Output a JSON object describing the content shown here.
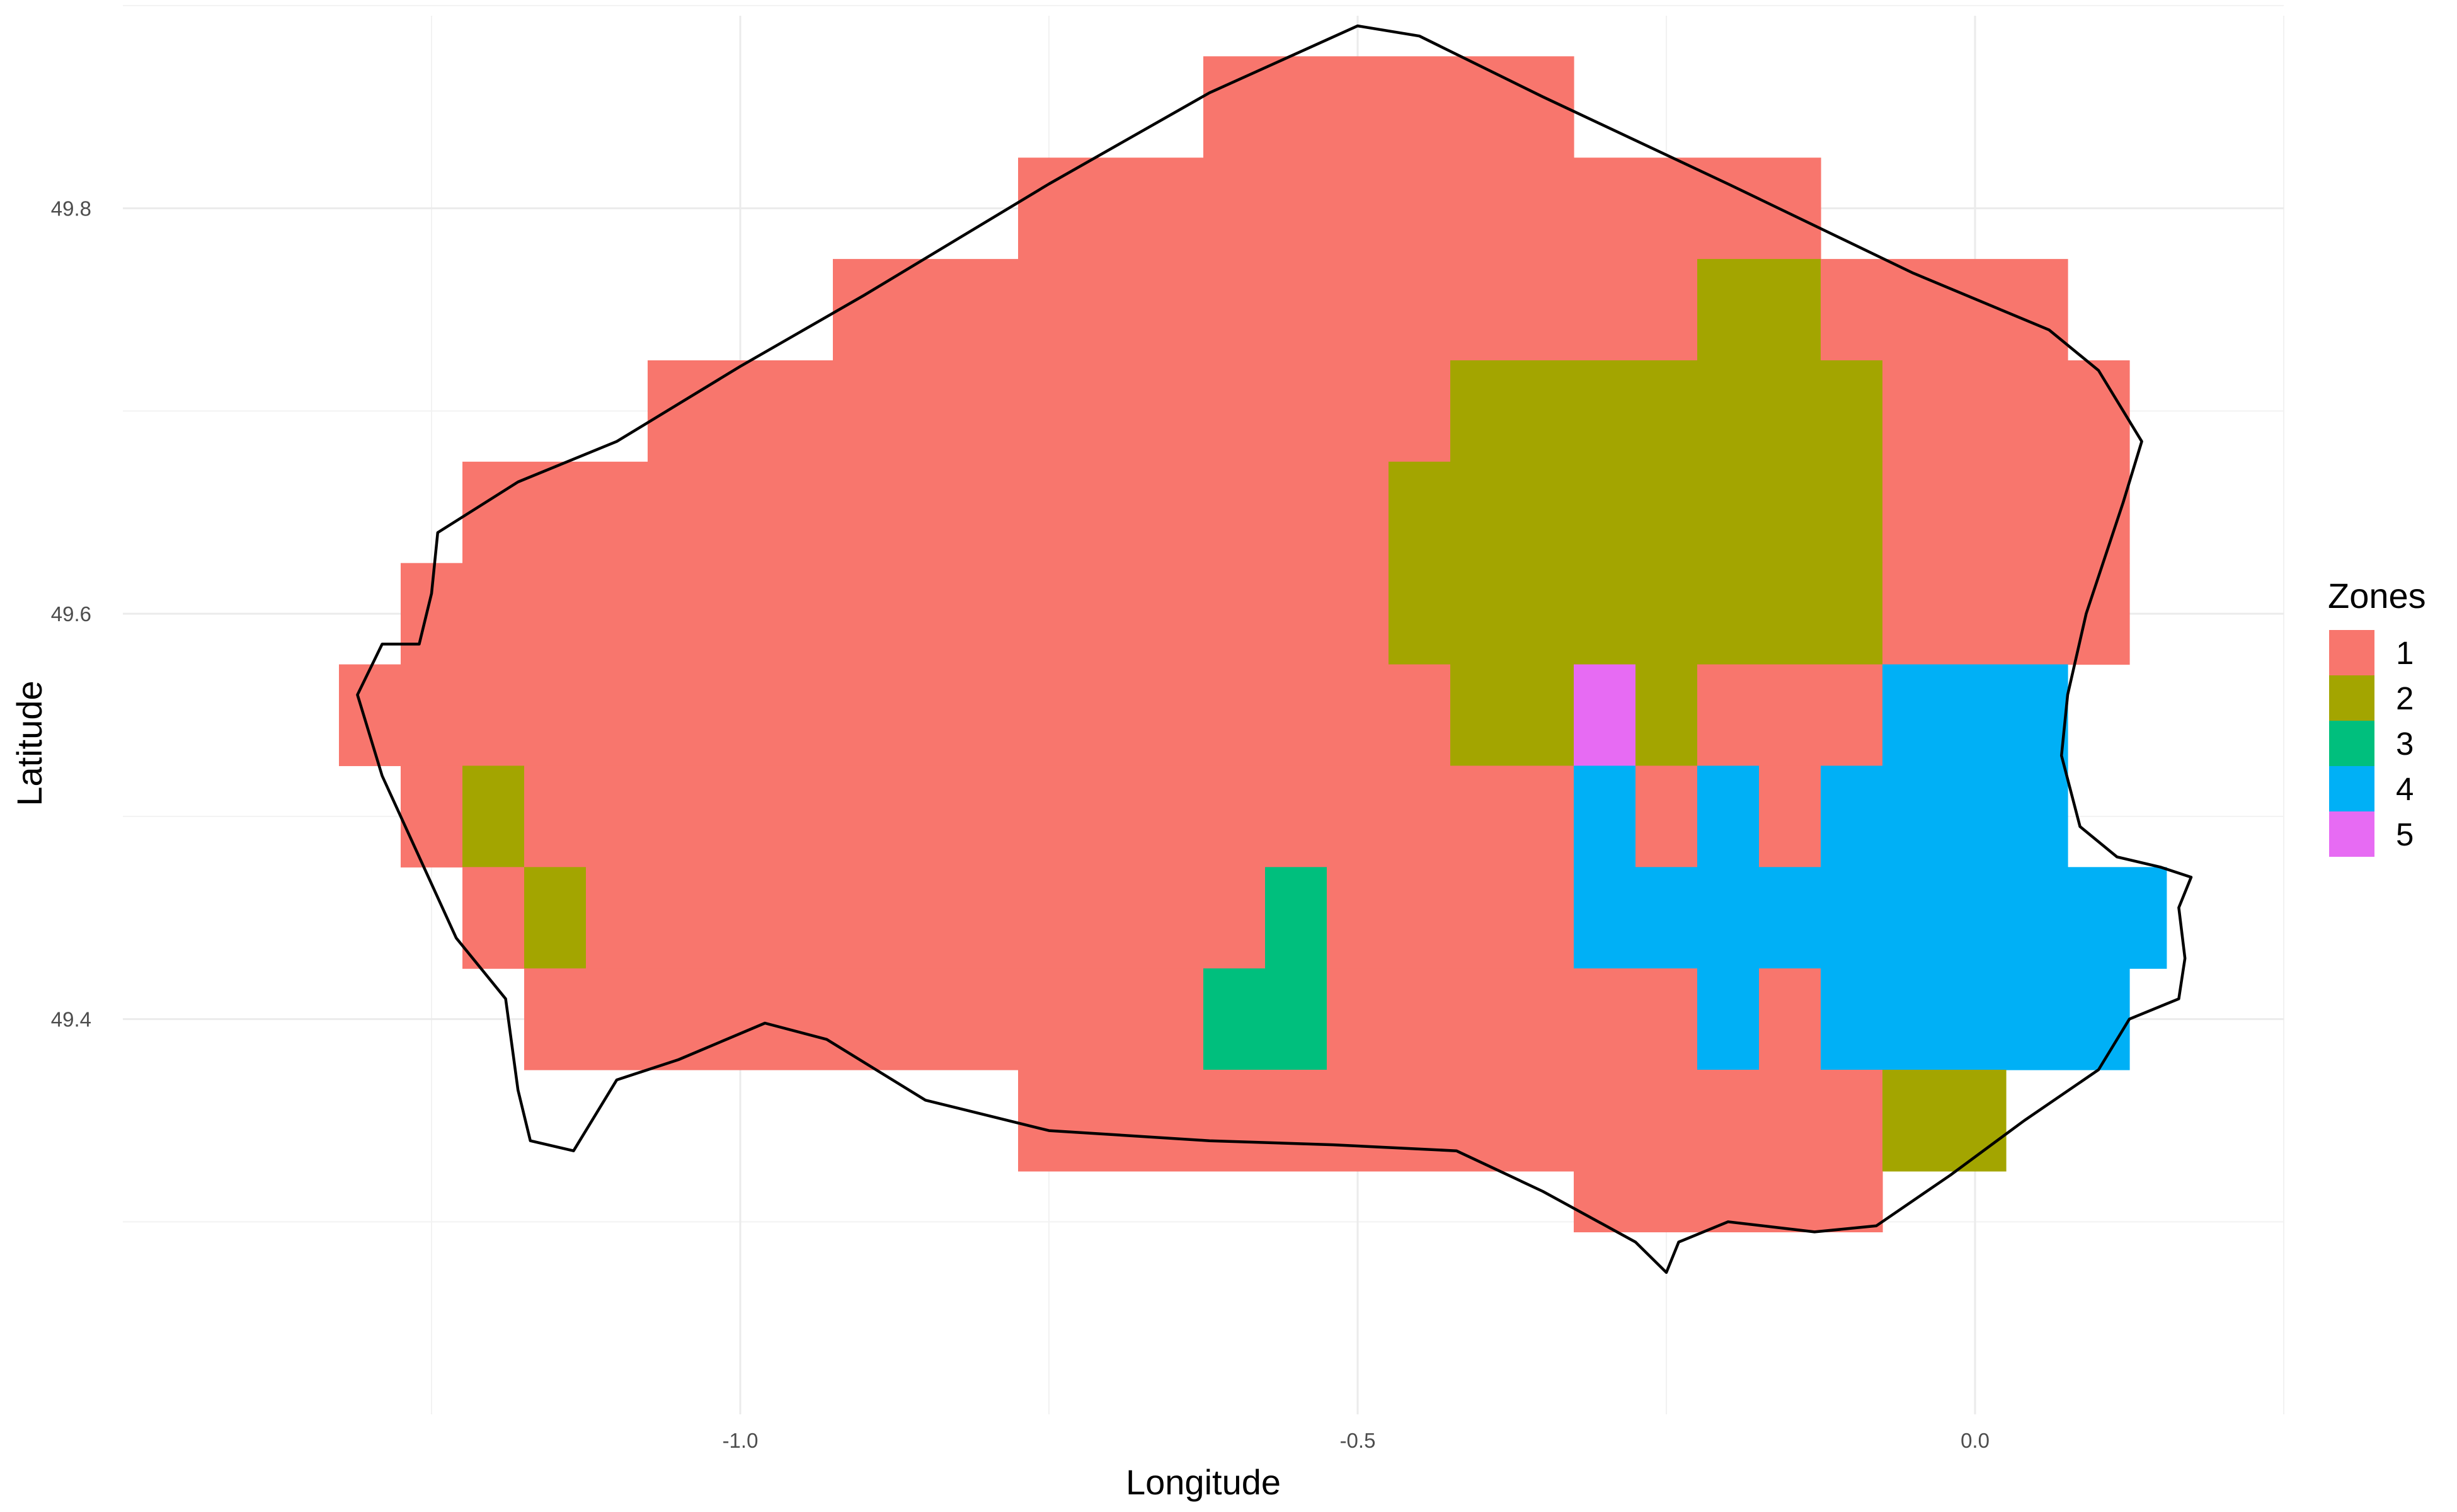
{
  "chart_data": {
    "type": "heatmap",
    "xlabel": "Longitude",
    "ylabel": "Latitude",
    "xlim": [
      -1.5,
      0.25
    ],
    "ylim": [
      49.205,
      49.895
    ],
    "x_ticks": [
      -1.0,
      -0.5,
      0.0
    ],
    "x_tick_labels": [
      "-1.0",
      "-0.5",
      "0.0"
    ],
    "x_minor": [
      -1.25,
      -0.75,
      -0.25,
      0.25
    ],
    "y_ticks": [
      49.4,
      49.6,
      49.8
    ],
    "y_tick_labels": [
      "49.4",
      "49.6",
      "49.8"
    ],
    "y_minor": [
      49.3,
      49.5,
      49.7,
      49.9
    ],
    "grid": true,
    "legend": {
      "title": "Zones",
      "position": "right",
      "entries": [
        {
          "label": "1",
          "color": "#F8766D"
        },
        {
          "label": "2",
          "color": "#A3A500"
        },
        {
          "label": "3",
          "color": "#00BF7D"
        },
        {
          "label": "4",
          "color": "#00B0F6"
        },
        {
          "label": "5",
          "color": "#E76BF3"
        }
      ]
    },
    "cells": [
      {
        "x0": -0.625,
        "x1": -0.325,
        "y0": 49.825,
        "y1": 49.875,
        "zone": 1
      },
      {
        "x0": -0.775,
        "x1": -0.125,
        "y0": 49.775,
        "y1": 49.825,
        "zone": 1
      },
      {
        "x0": -0.925,
        "x1": -0.225,
        "y0": 49.725,
        "y1": 49.775,
        "zone": 1
      },
      {
        "x0": -0.225,
        "x1": -0.125,
        "y0": 49.725,
        "y1": 49.775,
        "zone": 2
      },
      {
        "x0": -0.125,
        "x1": 0.075,
        "y0": 49.725,
        "y1": 49.775,
        "zone": 1
      },
      {
        "x0": -1.075,
        "x1": -0.425,
        "y0": 49.675,
        "y1": 49.725,
        "zone": 1
      },
      {
        "x0": -0.425,
        "x1": -0.075,
        "y0": 49.675,
        "y1": 49.725,
        "zone": 2
      },
      {
        "x0": -0.075,
        "x1": 0.125,
        "y0": 49.675,
        "y1": 49.725,
        "zone": 1
      },
      {
        "x0": -1.225,
        "x1": -0.475,
        "y0": 49.625,
        "y1": 49.675,
        "zone": 1
      },
      {
        "x0": -0.475,
        "x1": -0.075,
        "y0": 49.625,
        "y1": 49.675,
        "zone": 2
      },
      {
        "x0": -0.075,
        "x1": 0.125,
        "y0": 49.625,
        "y1": 49.675,
        "zone": 1
      },
      {
        "x0": -1.275,
        "x1": -0.475,
        "y0": 49.575,
        "y1": 49.625,
        "zone": 1
      },
      {
        "x0": -0.475,
        "x1": -0.075,
        "y0": 49.575,
        "y1": 49.625,
        "zone": 2
      },
      {
        "x0": -0.075,
        "x1": 0.125,
        "y0": 49.575,
        "y1": 49.625,
        "zone": 1
      },
      {
        "x0": -1.325,
        "x1": -0.425,
        "y0": 49.525,
        "y1": 49.575,
        "zone": 1
      },
      {
        "x0": -0.425,
        "x1": -0.325,
        "y0": 49.525,
        "y1": 49.575,
        "zone": 2
      },
      {
        "x0": -0.325,
        "x1": -0.275,
        "y0": 49.525,
        "y1": 49.575,
        "zone": 5
      },
      {
        "x0": -0.275,
        "x1": -0.225,
        "y0": 49.525,
        "y1": 49.575,
        "zone": 2
      },
      {
        "x0": -0.225,
        "x1": -0.075,
        "y0": 49.525,
        "y1": 49.575,
        "zone": 1
      },
      {
        "x0": -0.075,
        "x1": 0.075,
        "y0": 49.525,
        "y1": 49.575,
        "zone": 4
      },
      {
        "x0": -1.275,
        "x1": -1.225,
        "y0": 49.475,
        "y1": 49.525,
        "zone": 1
      },
      {
        "x0": -1.225,
        "x1": -1.175,
        "y0": 49.475,
        "y1": 49.525,
        "zone": 2
      },
      {
        "x0": -1.175,
        "x1": -0.325,
        "y0": 49.475,
        "y1": 49.525,
        "zone": 1
      },
      {
        "x0": -0.325,
        "x1": -0.275,
        "y0": 49.475,
        "y1": 49.525,
        "zone": 4
      },
      {
        "x0": -0.275,
        "x1": -0.225,
        "y0": 49.475,
        "y1": 49.525,
        "zone": 1
      },
      {
        "x0": -0.225,
        "x1": -0.175,
        "y0": 49.475,
        "y1": 49.525,
        "zone": 4
      },
      {
        "x0": -0.175,
        "x1": -0.125,
        "y0": 49.475,
        "y1": 49.525,
        "zone": 1
      },
      {
        "x0": -0.125,
        "x1": 0.075,
        "y0": 49.475,
        "y1": 49.525,
        "zone": 4
      },
      {
        "x0": -1.225,
        "x1": -1.175,
        "y0": 49.425,
        "y1": 49.475,
        "zone": 1
      },
      {
        "x0": -1.175,
        "x1": -1.125,
        "y0": 49.425,
        "y1": 49.475,
        "zone": 2
      },
      {
        "x0": -1.125,
        "x1": -0.575,
        "y0": 49.425,
        "y1": 49.475,
        "zone": 1
      },
      {
        "x0": -0.575,
        "x1": -0.525,
        "y0": 49.425,
        "y1": 49.475,
        "zone": 3
      },
      {
        "x0": -0.525,
        "x1": -0.325,
        "y0": 49.425,
        "y1": 49.475,
        "zone": 1
      },
      {
        "x0": -0.325,
        "x1": 0.155,
        "y0": 49.425,
        "y1": 49.475,
        "zone": 4
      },
      {
        "x0": -1.175,
        "x1": -0.625,
        "y0": 49.375,
        "y1": 49.425,
        "zone": 1
      },
      {
        "x0": -0.625,
        "x1": -0.525,
        "y0": 49.375,
        "y1": 49.425,
        "zone": 3
      },
      {
        "x0": -0.525,
        "x1": -0.225,
        "y0": 49.375,
        "y1": 49.425,
        "zone": 1
      },
      {
        "x0": -0.225,
        "x1": -0.175,
        "y0": 49.375,
        "y1": 49.425,
        "zone": 4
      },
      {
        "x0": -0.175,
        "x1": -0.125,
        "y0": 49.375,
        "y1": 49.425,
        "zone": 1
      },
      {
        "x0": -0.125,
        "x1": 0.125,
        "y0": 49.375,
        "y1": 49.425,
        "zone": 4
      },
      {
        "x0": -0.775,
        "x1": -0.075,
        "y0": 49.325,
        "y1": 49.375,
        "zone": 1
      },
      {
        "x0": -0.075,
        "x1": 0.025,
        "y0": 49.325,
        "y1": 49.375,
        "zone": 2
      },
      {
        "x0": -0.325,
        "x1": -0.075,
        "y0": 49.295,
        "y1": 49.325,
        "zone": 1
      }
    ],
    "outline": [
      [
        -1.245,
        49.64
      ],
      [
        -1.18,
        49.665
      ],
      [
        -1.1,
        49.685
      ],
      [
        -1.0,
        49.722
      ],
      [
        -0.9,
        49.757
      ],
      [
        -0.75,
        49.812
      ],
      [
        -0.62,
        49.857
      ],
      [
        -0.5,
        49.89
      ],
      [
        -0.45,
        49.885
      ],
      [
        -0.35,
        49.855
      ],
      [
        -0.2,
        49.812
      ],
      [
        -0.05,
        49.768
      ],
      [
        0.06,
        49.74
      ],
      [
        0.1,
        49.72
      ],
      [
        0.135,
        49.685
      ],
      [
        0.12,
        49.655
      ],
      [
        0.09,
        49.6
      ],
      [
        0.075,
        49.56
      ],
      [
        0.07,
        49.53
      ],
      [
        0.085,
        49.495
      ],
      [
        0.115,
        49.48
      ],
      [
        0.15,
        49.475
      ],
      [
        0.175,
        49.47
      ],
      [
        0.165,
        49.455
      ],
      [
        0.17,
        49.43
      ],
      [
        0.165,
        49.41
      ],
      [
        0.125,
        49.4
      ],
      [
        0.1,
        49.375
      ],
      [
        0.04,
        49.35
      ],
      [
        -0.02,
        49.323
      ],
      [
        -0.08,
        49.298
      ],
      [
        -0.13,
        49.295
      ],
      [
        -0.2,
        49.3
      ],
      [
        -0.24,
        49.29
      ],
      [
        -0.25,
        49.275
      ],
      [
        -0.275,
        49.29
      ],
      [
        -0.35,
        49.315
      ],
      [
        -0.42,
        49.335
      ],
      [
        -0.52,
        49.338
      ],
      [
        -0.62,
        49.34
      ],
      [
        -0.75,
        49.345
      ],
      [
        -0.85,
        49.36
      ],
      [
        -0.93,
        49.39
      ],
      [
        -0.98,
        49.398
      ],
      [
        -1.05,
        49.38
      ],
      [
        -1.1,
        49.37
      ],
      [
        -1.135,
        49.335
      ],
      [
        -1.17,
        49.34
      ],
      [
        -1.18,
        49.365
      ],
      [
        -1.19,
        49.41
      ],
      [
        -1.23,
        49.44
      ],
      [
        -1.26,
        49.48
      ],
      [
        -1.29,
        49.52
      ],
      [
        -1.31,
        49.56
      ],
      [
        -1.29,
        49.585
      ],
      [
        -1.26,
        49.585
      ],
      [
        -1.25,
        49.61
      ],
      [
        -1.245,
        49.64
      ]
    ]
  }
}
